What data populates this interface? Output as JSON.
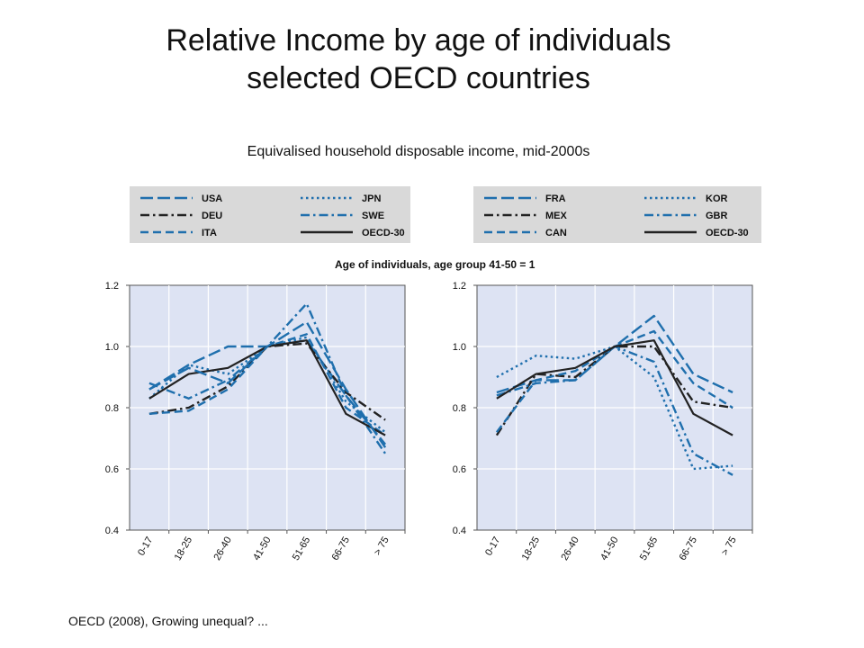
{
  "title_line1": "Relative Income by age of individuals",
  "title_line2": "selected OECD countries",
  "subtitle": "Equivalised household disposable income, mid-2000s",
  "axis_note": "Age of individuals, age group 41-50 = 1",
  "source": "OECD (2008), Growing unequal? ...",
  "colors": {
    "blue": "#1f6fad",
    "black": "#222222",
    "plot_bg": "#dde3f3",
    "legend_bg": "#d9d9d9"
  },
  "chart_data": [
    {
      "type": "line",
      "categories": [
        "0-17",
        "18-25",
        "26-40",
        "41-50",
        "51-65",
        "66-75",
        "> 75"
      ],
      "ylim": [
        0.4,
        1.2
      ],
      "yticks": [
        "0.4",
        "0.6",
        "0.8",
        "1.0",
        "1.2"
      ],
      "grid": true,
      "legend": "above",
      "series": [
        {
          "name": "USA",
          "color": "#1f6fad",
          "style": "longdash",
          "values": [
            0.86,
            0.94,
            1.0,
            1.0,
            1.02,
            0.84,
            0.68
          ]
        },
        {
          "name": "DEU",
          "color": "#222222",
          "style": "dashdot",
          "values": [
            0.78,
            0.8,
            0.87,
            1.0,
            1.01,
            0.85,
            0.76
          ]
        },
        {
          "name": "ITA",
          "color": "#1f6fad",
          "style": "dash",
          "values": [
            0.78,
            0.79,
            0.86,
            1.0,
            1.04,
            0.8,
            0.71
          ]
        },
        {
          "name": "JPN",
          "color": "#1f6fad",
          "style": "dot",
          "values": [
            0.83,
            0.94,
            0.91,
            1.0,
            1.03,
            0.82,
            0.72
          ]
        },
        {
          "name": "SWE",
          "color": "#1f6fad",
          "style": "dashdot",
          "values": [
            0.88,
            0.83,
            0.89,
            1.0,
            1.14,
            0.84,
            0.65
          ]
        },
        {
          "name": "OECD-30",
          "color": "#222222",
          "style": "solid",
          "values": [
            0.83,
            0.91,
            0.93,
            1.0,
            1.02,
            0.78,
            0.71
          ]
        },
        {
          "name": "",
          "color": "#1f6fad",
          "style": "longdash",
          "values": [
            0.86,
            0.93,
            0.88,
            1.0,
            1.08,
            0.86,
            0.67
          ]
        }
      ]
    },
    {
      "type": "line",
      "categories": [
        "0-17",
        "18-25",
        "26-40",
        "41-50",
        "51-65",
        "66-75",
        "> 75"
      ],
      "ylim": [
        0.4,
        1.2
      ],
      "yticks": [
        "0.4",
        "0.6",
        "0.8",
        "1.0",
        "1.2"
      ],
      "grid": true,
      "legend": "above",
      "series": [
        {
          "name": "FRA",
          "color": "#1f6fad",
          "style": "longdash",
          "values": [
            0.85,
            0.89,
            0.89,
            1.0,
            1.1,
            0.91,
            0.85
          ]
        },
        {
          "name": "MEX",
          "color": "#222222",
          "style": "dashdot",
          "values": [
            0.71,
            0.91,
            0.9,
            1.0,
            1.0,
            0.82,
            0.8
          ]
        },
        {
          "name": "CAN",
          "color": "#1f6fad",
          "style": "dash",
          "values": [
            0.72,
            0.89,
            0.92,
            1.0,
            1.05,
            0.88,
            0.8
          ]
        },
        {
          "name": "KOR",
          "color": "#1f6fad",
          "style": "dot",
          "values": [
            0.9,
            0.97,
            0.96,
            1.0,
            0.9,
            0.6,
            0.61
          ]
        },
        {
          "name": "GBR",
          "color": "#1f6fad",
          "style": "dashdot",
          "values": [
            0.84,
            0.88,
            0.89,
            1.0,
            0.95,
            0.65,
            0.58
          ]
        },
        {
          "name": "OECD-30",
          "color": "#222222",
          "style": "solid",
          "values": [
            0.83,
            0.91,
            0.93,
            1.0,
            1.02,
            0.78,
            0.71
          ]
        }
      ]
    }
  ]
}
